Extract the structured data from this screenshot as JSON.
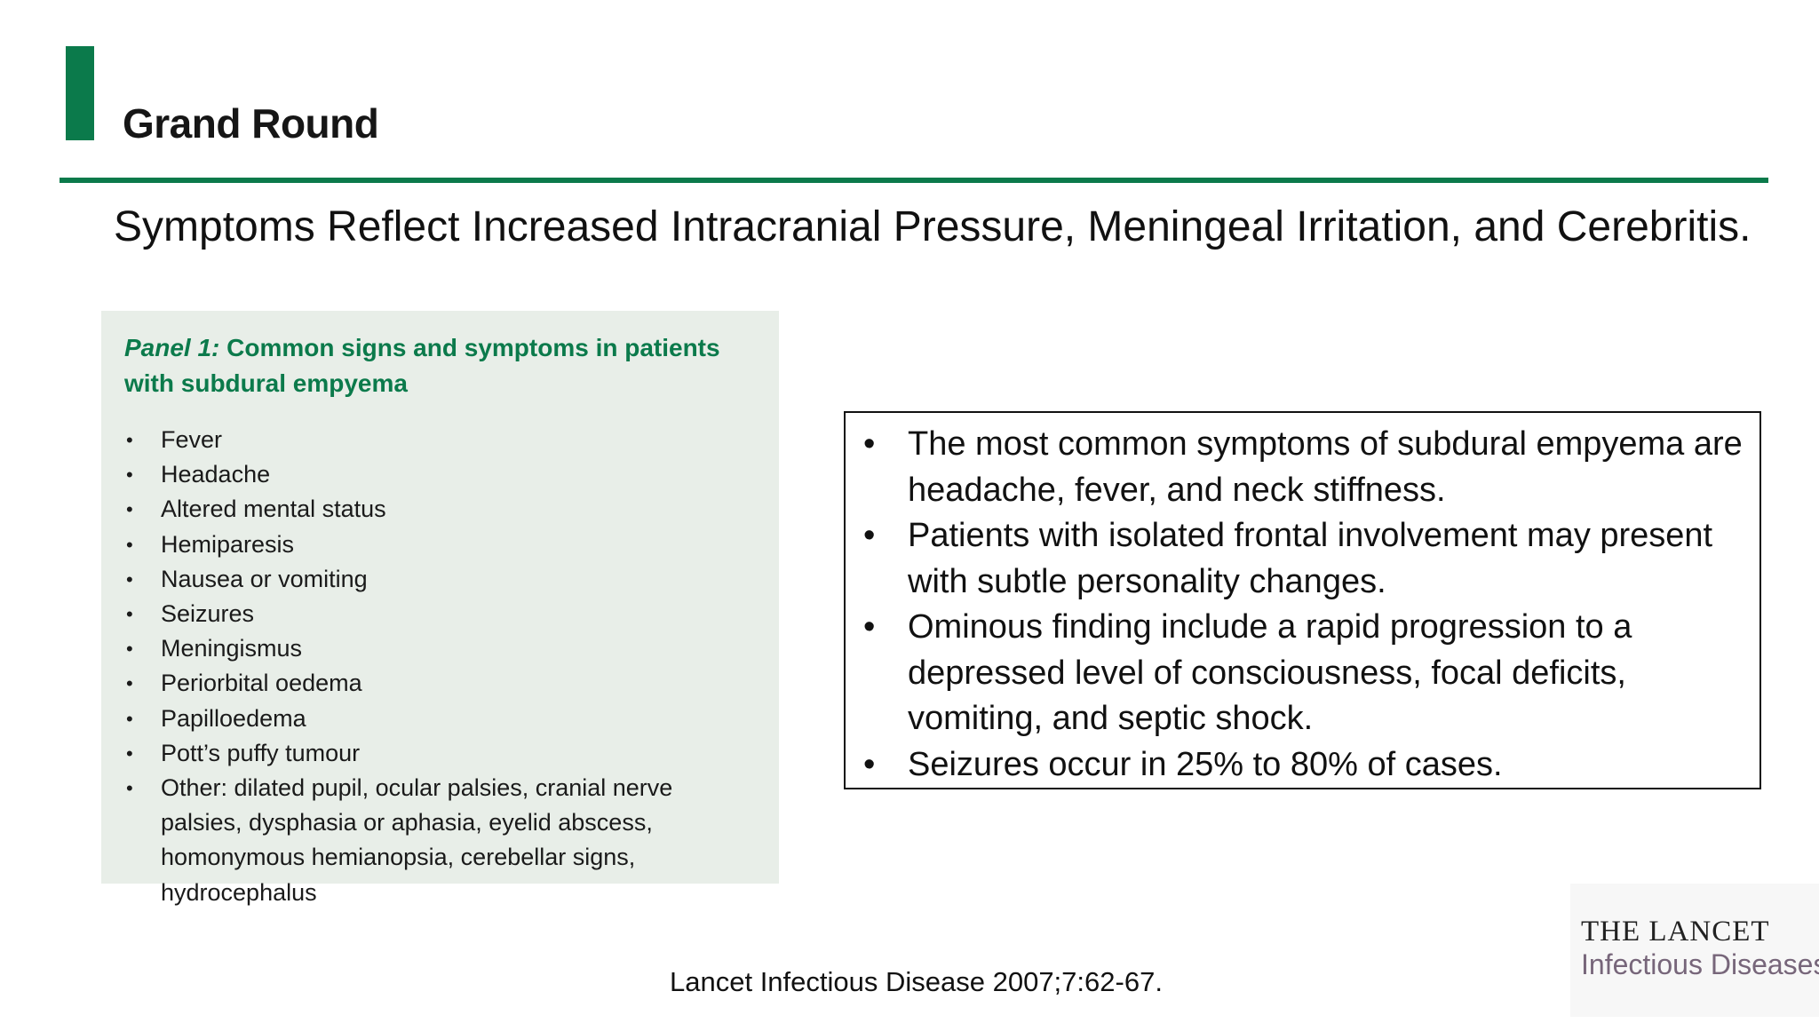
{
  "header": {
    "section_label": "Grand Round",
    "accent_color": "#0b7a4b"
  },
  "slide": {
    "title": "Symptoms Reflect Increased Intracranial Pressure, Meningeal Irritation, and Cerebritis."
  },
  "panel": {
    "heading_prefix": "Panel 1:",
    "heading_text": " Common signs and symptoms in patients with subdural empyema",
    "items": [
      "Fever",
      "Headache",
      "Altered mental status",
      "Hemiparesis",
      "Nausea or vomiting",
      "Seizures",
      "Meningismus",
      "Periorbital oedema",
      "Papilloedema",
      "Pott’s puffy tumour",
      "Other: dilated pupil, ocular palsies, cranial nerve palsies, dysphasia or aphasia, eyelid abscess, homonymous hemianopsia, cerebellar signs, hydrocephalus"
    ]
  },
  "summary": {
    "bullets": [
      "The most common symptoms of subdural empyema are headache, fever, and neck stiffness.",
      "Patients with isolated frontal involvement may present with subtle personality changes.",
      "Ominous finding include a rapid progression to a depressed level of consciousness, focal deficits, vomiting, and septic shock.",
      "Seizures occur in 25% to 80% of cases."
    ]
  },
  "citation": "Lancet Infectious Disease 2007;7:62-67.",
  "logo": {
    "line1": "THE LANCET",
    "line2": "Infectious Diseases"
  }
}
